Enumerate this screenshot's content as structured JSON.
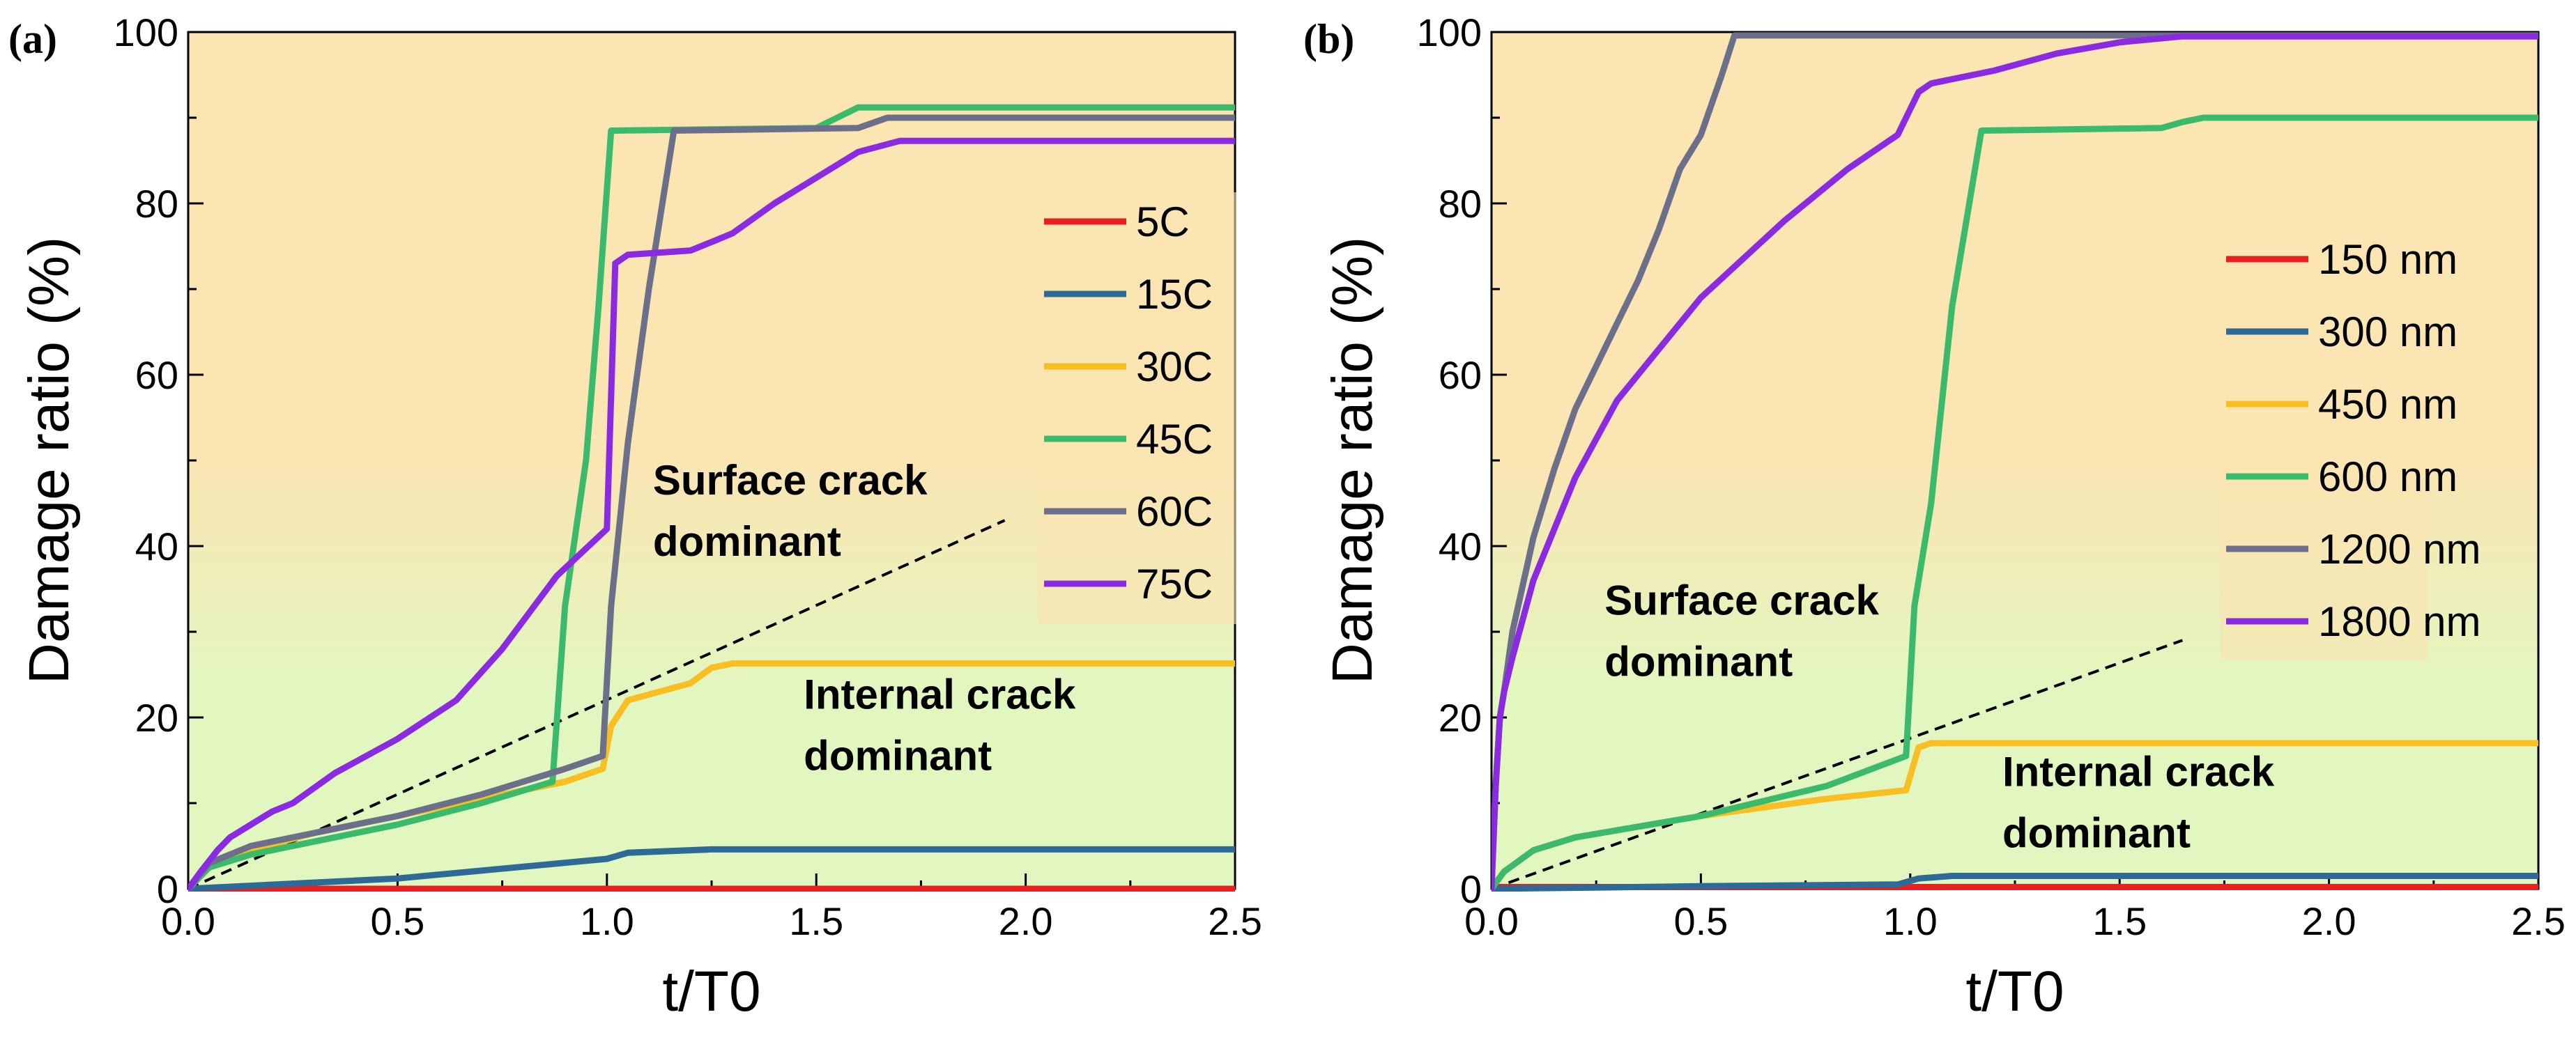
{
  "chart_data": [
    {
      "type": "line",
      "panel_label": "(a)",
      "xlabel": "t/T0",
      "ylabel": "Damage ratio (%)",
      "xlim": [
        0,
        2.5
      ],
      "ylim": [
        0,
        100
      ],
      "xticks": [
        "0.0",
        "0.5",
        "1.0",
        "1.5",
        "2.0",
        "2.5"
      ],
      "yticks": [
        "0",
        "20",
        "40",
        "60",
        "80",
        "100"
      ],
      "legend_position": "right",
      "annotations": [
        {
          "text": "Surface crack",
          "line2": "dominant",
          "x": 1.11,
          "y": 46
        },
        {
          "text": "Internal crack",
          "line2": "dominant",
          "x": 1.47,
          "y": 21
        }
      ],
      "divider_line": {
        "x": [
          0,
          1.95
        ],
        "y": [
          0,
          43
        ]
      },
      "region_colors": {
        "surface": "#fae5b3",
        "internal": "#e2f7c0"
      },
      "series": [
        {
          "name": "5C",
          "color": "#e8201f",
          "x": [
            0,
            2.5
          ],
          "y": [
            0,
            0
          ]
        },
        {
          "name": "15C",
          "color": "#2e6a96",
          "x": [
            0,
            0.5,
            1.0,
            1.05,
            1.25,
            2.5
          ],
          "y": [
            0,
            1.2,
            3.5,
            4.2,
            4.6,
            4.6
          ]
        },
        {
          "name": "30C",
          "color": "#f8be22",
          "x": [
            0,
            0.05,
            0.15,
            0.3,
            0.5,
            0.7,
            0.9,
            0.99,
            1.01,
            1.05,
            1.2,
            1.25,
            1.3,
            2.5
          ],
          "y": [
            0,
            2.5,
            4.5,
            6.5,
            8.5,
            10.5,
            12.5,
            14,
            19,
            22,
            24,
            25.8,
            26.3,
            26.3
          ]
        },
        {
          "name": "45C",
          "color": "#3cba6c",
          "x": [
            0,
            0.05,
            0.15,
            0.3,
            0.5,
            0.7,
            0.87,
            0.9,
            0.95,
            0.98,
            1.01,
            1.5,
            1.55,
            1.6,
            2.5
          ],
          "y": [
            0,
            2.5,
            4,
            5.5,
            7.5,
            10,
            12.5,
            33,
            50,
            68,
            88.5,
            88.8,
            90,
            91.2,
            91.2
          ]
        },
        {
          "name": "60C",
          "color": "#6c6f8a",
          "x": [
            0,
            0.05,
            0.15,
            0.3,
            0.5,
            0.7,
            0.9,
            0.99,
            1.01,
            1.05,
            1.1,
            1.16,
            1.6,
            1.67,
            2.5
          ],
          "y": [
            0,
            3,
            5,
            6.5,
            8.5,
            11,
            14,
            15.5,
            33,
            52,
            70,
            88.5,
            88.8,
            90,
            90
          ]
        },
        {
          "name": "75C",
          "color": "#8a2be2",
          "x": [
            0,
            0.03,
            0.07,
            0.1,
            0.2,
            0.25,
            0.35,
            0.5,
            0.64,
            0.75,
            0.88,
            1.0,
            1.02,
            1.05,
            1.2,
            1.25,
            1.3,
            1.4,
            1.5,
            1.6,
            1.7,
            2.5
          ],
          "y": [
            0,
            2,
            4.5,
            6,
            9,
            10,
            13.5,
            17.5,
            22,
            28,
            36.5,
            42,
            73,
            74,
            74.5,
            75.5,
            76.5,
            80,
            83,
            86,
            87.3,
            87.3
          ]
        }
      ]
    },
    {
      "type": "line",
      "panel_label": "(b)",
      "xlabel": "t/T0",
      "ylabel": "Damage ratio (%)",
      "xlim": [
        0,
        2.5
      ],
      "ylim": [
        0,
        100
      ],
      "xticks": [
        "0.0",
        "0.5",
        "1.0",
        "1.5",
        "2.0",
        "2.5"
      ],
      "yticks": [
        "0",
        "20",
        "40",
        "60",
        "80",
        "100"
      ],
      "legend_position": "right",
      "annotations": [
        {
          "text": "Surface crack",
          "line2": "dominant",
          "x": 0.27,
          "y": 32
        },
        {
          "text": "Internal crack",
          "line2": "dominant",
          "x": 1.22,
          "y": 12
        }
      ],
      "divider_line": {
        "x": [
          0,
          1.65
        ],
        "y": [
          0,
          29
        ]
      },
      "region_colors": {
        "surface": "#fae5b3",
        "internal": "#e2f7c0"
      },
      "series": [
        {
          "name": "150 nm",
          "color": "#e8201f",
          "x": [
            0,
            2.5
          ],
          "y": [
            0.2,
            0.2
          ]
        },
        {
          "name": "300 nm",
          "color": "#2e6a96",
          "x": [
            0,
            0.5,
            0.97,
            1.02,
            1.1,
            2.5
          ],
          "y": [
            0,
            0.3,
            0.5,
            1.2,
            1.5,
            1.5
          ]
        },
        {
          "name": "450 nm",
          "color": "#f8be22",
          "x": [
            0,
            0.03,
            0.1,
            0.2,
            0.5,
            0.8,
            0.99,
            1.02,
            1.05,
            2.5
          ],
          "y": [
            0,
            2,
            4.5,
            6,
            8.5,
            10.5,
            11.5,
            16.5,
            17,
            17
          ]
        },
        {
          "name": "600 nm",
          "color": "#3cba6c",
          "x": [
            0,
            0.03,
            0.1,
            0.2,
            0.5,
            0.8,
            0.99,
            1.01,
            1.05,
            1.1,
            1.17,
            1.6,
            1.65,
            1.7,
            2.5
          ],
          "y": [
            0,
            2,
            4.5,
            6,
            8.5,
            12,
            15.5,
            33,
            45,
            68,
            88.5,
            88.8,
            89.5,
            90,
            90
          ]
        },
        {
          "name": "1200 nm",
          "color": "#6c6f8a",
          "x": [
            0,
            0.01,
            0.02,
            0.03,
            0.05,
            0.1,
            0.15,
            0.2,
            0.25,
            0.3,
            0.35,
            0.4,
            0.45,
            0.5,
            0.55,
            0.58,
            2.5
          ],
          "y": [
            0,
            12,
            20,
            23,
            30,
            41,
            49,
            56,
            61,
            66,
            71,
            77,
            84,
            88,
            95,
            99.6,
            99.6
          ]
        },
        {
          "name": "1800 nm",
          "color": "#8a2be2",
          "x": [
            0,
            0.01,
            0.02,
            0.03,
            0.05,
            0.1,
            0.2,
            0.3,
            0.5,
            0.7,
            0.85,
            0.97,
            1.0,
            1.02,
            1.05,
            1.2,
            1.35,
            1.5,
            1.65,
            2.5
          ],
          "y": [
            0,
            12,
            20,
            23,
            27,
            36,
            48,
            57,
            69,
            78,
            84,
            88,
            91,
            93,
            94,
            95.5,
            97.5,
            98.8,
            99.5,
            99.5
          ]
        }
      ]
    }
  ]
}
